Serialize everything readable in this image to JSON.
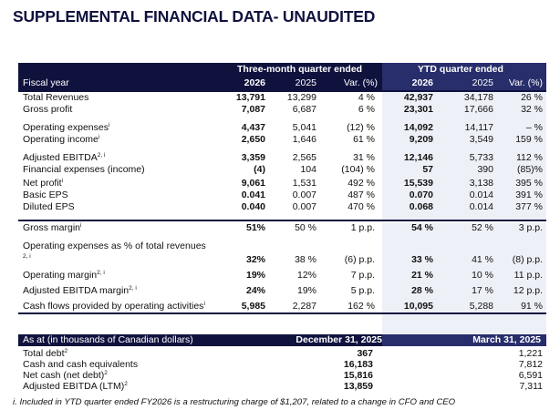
{
  "title": "SUPPLEMENTAL FINANCIAL DATA- UNAUDITED",
  "header": {
    "three_month": "Three-month quarter ended",
    "ytd": "YTD quarter ended",
    "fiscal_year": "Fiscal year",
    "y2026": "2026",
    "y2025": "2025",
    "var": "Var. (%)",
    "ytd_2026": "2026",
    "ytd_2025": "2025",
    "ytd_var": "Var. (%)"
  },
  "rows": [
    {
      "label": "Total Revenues",
      "sup": "",
      "c1": "13,791",
      "c2": "13,299",
      "c3": "4 %",
      "c4": "42,937",
      "c5": "34,178",
      "c6": "26 %"
    },
    {
      "label": "Gross profit",
      "sup": "",
      "c1": "7,087",
      "c2": "6,687",
      "c3": "6 %",
      "c4": "23,301",
      "c5": "17,666",
      "c6": "32 %"
    },
    {
      "label": "Operating expenses",
      "sup": "i",
      "c1": "4,437",
      "c2": "5,041",
      "c3": "(12) %",
      "c4": "14,092",
      "c5": "14,117",
      "c6": "– %"
    },
    {
      "label": "Operating income",
      "sup": "i",
      "c1": "2,650",
      "c2": "1,646",
      "c3": "61 %",
      "c4": "9,209",
      "c5": "3,549",
      "c6": "159 %"
    },
    {
      "label": "Adjusted EBITDA",
      "sup": "2, i",
      "c1": "3,359",
      "c2": "2,565",
      "c3": "31 %",
      "c4": "12,146",
      "c5": "5,733",
      "c6": "112 %"
    },
    {
      "label": "Financial expenses (income)",
      "sup": "",
      "c1": "(4)",
      "c2": "104",
      "c3": "(104) %",
      "c4": "57",
      "c5": "390",
      "c6": "(85)%"
    },
    {
      "label": "Net profit",
      "sup": "i",
      "c1": "9,061",
      "c2": "1,531",
      "c3": "492 %",
      "c4": "15,539",
      "c5": "3,138",
      "c6": "395 %"
    },
    {
      "label": "Basic EPS",
      "sup": "",
      "c1": "0.041",
      "c2": "0.007",
      "c3": "487 %",
      "c4": "0.070",
      "c5": "0.014",
      "c6": "391 %"
    },
    {
      "label": "Diluted EPS",
      "sup": "",
      "c1": "0.040",
      "c2": "0.007",
      "c3": "470 %",
      "c4": "0.068",
      "c5": "0.014",
      "c6": "377 %"
    },
    {
      "label": "Gross margin",
      "sup": "i",
      "c1": "51%",
      "c2": "50 %",
      "c3": "1 p.p.",
      "c4": "54 %",
      "c5": "52 %",
      "c6": "3 p.p."
    },
    {
      "label": "Operating expenses as % of total revenues",
      "label2": "2, i",
      "sup": "",
      "c1": "32%",
      "c2": "38 %",
      "c3": "(6) p.p.",
      "c4": "33 %",
      "c5": "41 %",
      "c6": "(8) p.p."
    },
    {
      "label": "Operating margin",
      "sup": "2, i",
      "c1": "19%",
      "c2": "12%",
      "c3": "7 p.p.",
      "c4": "21 %",
      "c5": "10 %",
      "c6": "11 p.p."
    },
    {
      "label": "Adjusted EBITDA margin",
      "sup": "2, i",
      "c1": "24%",
      "c2": "19%",
      "c3": "5 p.p.",
      "c4": "28 %",
      "c5": "17 %",
      "c6": "12 p.p."
    },
    {
      "label": "Cash flows provided by operating activities",
      "sup": "i",
      "c1": "5,985",
      "c2": "2,287",
      "c3": "162 %",
      "c4": "10,095",
      "c5": "5,288",
      "c6": "91 %"
    }
  ],
  "balance": {
    "header_label": "As at (in thousands of Canadian dollars)",
    "dec": "December 31, 2025",
    "mar": "March 31, 2025",
    "rows": [
      {
        "label": "Total debt",
        "sup": "2",
        "dec": "367",
        "mar": "1,221"
      },
      {
        "label": "Cash and cash equivalents",
        "sup": "",
        "dec": "16,183",
        "mar": "7,812"
      },
      {
        "label": "Net cash (net debt)",
        "sup": "2",
        "dec": "15,816",
        "mar": "6,591"
      },
      {
        "label": "Adjusted EBITDA (LTM)",
        "sup": "2",
        "dec": "13,859",
        "mar": "7,311"
      }
    ]
  },
  "footnote": "i.  Included in YTD quarter ended FY2026 is a restructuring charge of $1,207, related to a change in CFO and CEO"
}
